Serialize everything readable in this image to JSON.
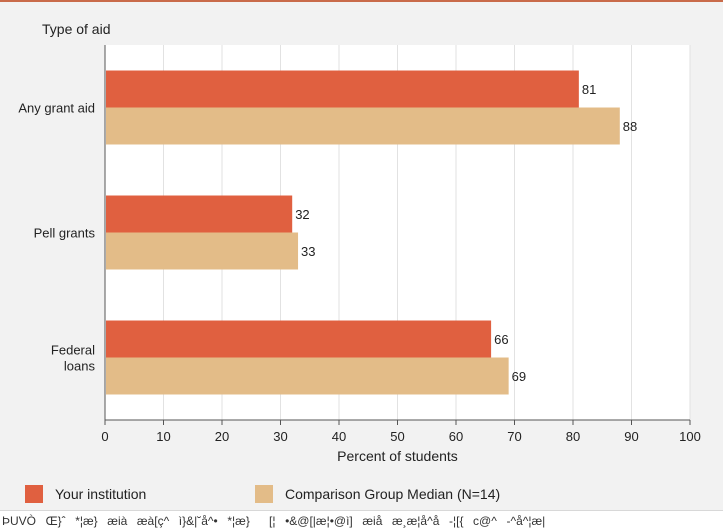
{
  "chart_data": {
    "type": "bar",
    "orientation": "horizontal",
    "title": "Type of aid",
    "xlabel": "Percent of students",
    "xlim": [
      0,
      100
    ],
    "xticks": [
      0,
      10,
      20,
      30,
      40,
      50,
      60,
      70,
      80,
      90,
      100
    ],
    "categories": [
      [
        "Any grant aid"
      ],
      [
        "Pell grants"
      ],
      [
        "Federal",
        "loans"
      ]
    ],
    "series": [
      {
        "name": "Your institution",
        "color": "#e06040",
        "values": [
          81,
          32,
          66
        ]
      },
      {
        "name": "Comparison Group Median (N=14)",
        "color": "#e3bc88",
        "values": [
          88,
          33,
          69
        ]
      }
    ],
    "grid": "vertical",
    "legend": "bottom"
  },
  "footer": {
    "text": "ÞUVÒŒ}ˆ*¦æ}æiàæà[ç^ì}&|˘å^•*¦æ}[¦•&@[|æ¦•@ì]æiåæ¸æ¦å^å-¦[{c@^-^å^¦æ|"
  }
}
